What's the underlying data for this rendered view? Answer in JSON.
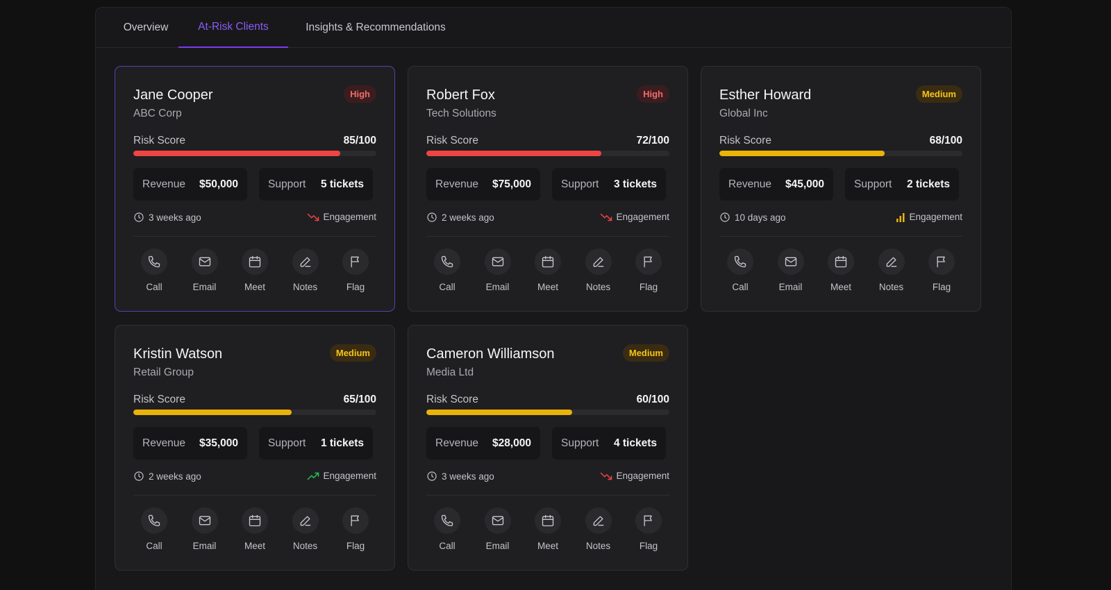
{
  "tabs": [
    {
      "label": "Overview"
    },
    {
      "label": "At-Risk Clients"
    },
    {
      "label": "Insights & Recommendations"
    }
  ],
  "colors": {
    "high": "#ef4444",
    "medium": "#eab308",
    "accent": "#7c3aed",
    "trend_down": "#ef4444",
    "trend_up": "#22c55e",
    "trend_flat": "#eab308"
  },
  "labels": {
    "risk_score": "Risk Score",
    "revenue": "Revenue",
    "support": "Support",
    "engagement": "Engagement",
    "actions": [
      "Call",
      "Email",
      "Meet",
      "Notes",
      "Flag"
    ]
  },
  "clients": [
    {
      "name": "Jane Cooper",
      "company": "ABC Corp",
      "level": "High",
      "score": "85/100",
      "score_value": 85,
      "revenue": "$50,000",
      "support": "5 tickets",
      "last_contact": "3 weeks ago",
      "engagement_trend": "down"
    },
    {
      "name": "Robert Fox",
      "company": "Tech Solutions",
      "level": "High",
      "score": "72/100",
      "score_value": 72,
      "revenue": "$75,000",
      "support": "3 tickets",
      "last_contact": "2 weeks ago",
      "engagement_trend": "down"
    },
    {
      "name": "Esther Howard",
      "company": "Global Inc",
      "level": "Medium",
      "score": "68/100",
      "score_value": 68,
      "revenue": "$45,000",
      "support": "2 tickets",
      "last_contact": "10 days ago",
      "engagement_trend": "flat"
    },
    {
      "name": "Kristin Watson",
      "company": "Retail Group",
      "level": "Medium",
      "score": "65/100",
      "score_value": 65,
      "revenue": "$35,000",
      "support": "1 tickets",
      "last_contact": "2 weeks ago",
      "engagement_trend": "up"
    },
    {
      "name": "Cameron Williamson",
      "company": "Media Ltd",
      "level": "Medium",
      "score": "60/100",
      "score_value": 60,
      "revenue": "$28,000",
      "support": "4 tickets",
      "last_contact": "3 weeks ago",
      "engagement_trend": "down"
    }
  ]
}
